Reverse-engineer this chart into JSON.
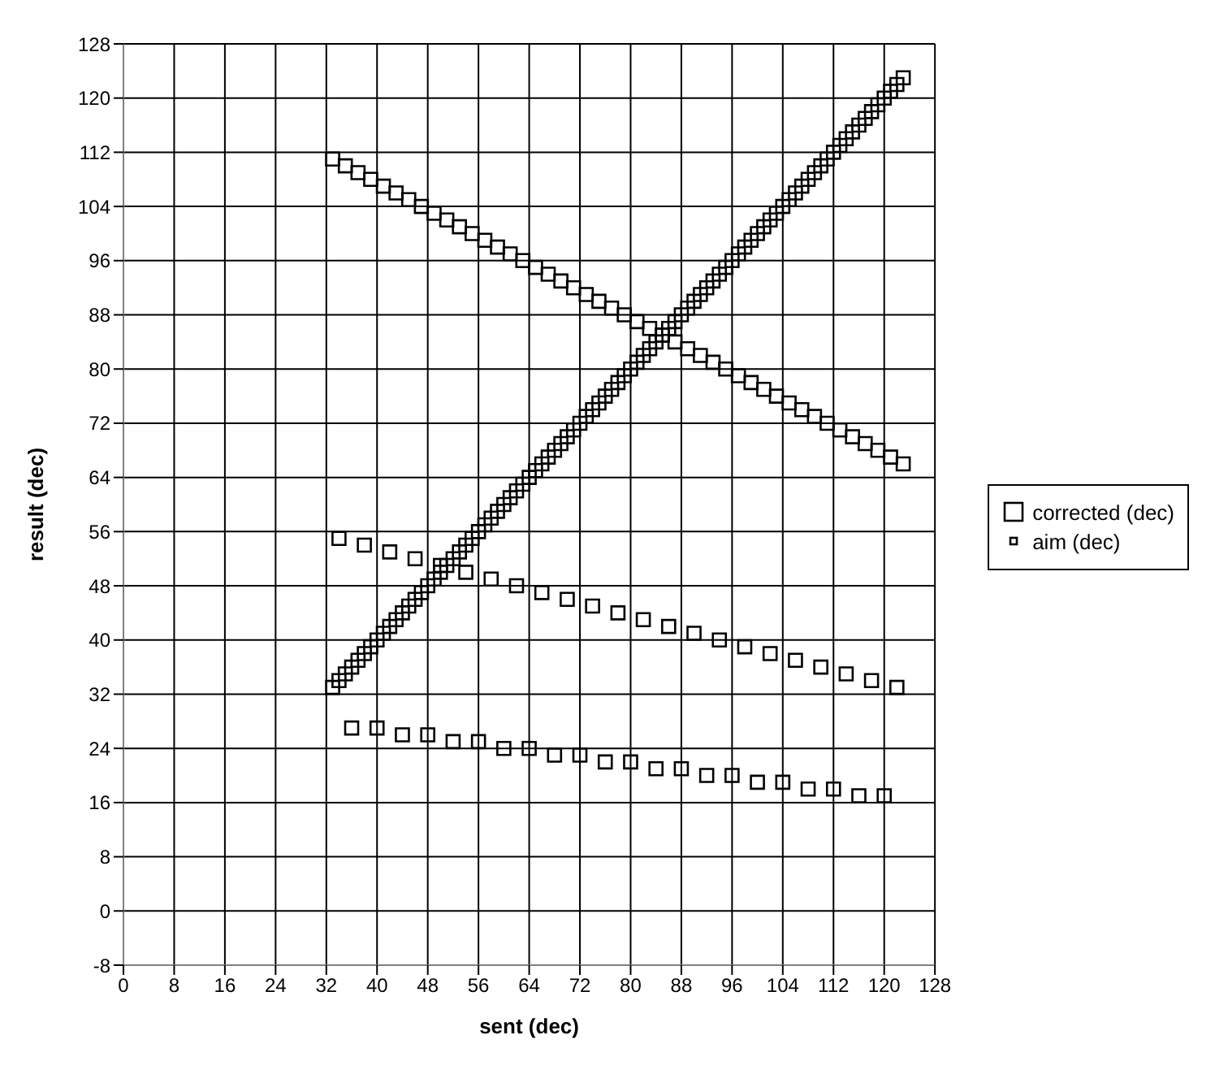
{
  "chart_data": {
    "type": "scatter",
    "xlabel": "sent (dec)",
    "ylabel": "result (dec)",
    "xlim": [
      0,
      128
    ],
    "xticks": [
      0,
      8,
      16,
      24,
      32,
      40,
      48,
      56,
      64,
      72,
      80,
      88,
      96,
      104,
      112,
      120,
      128
    ],
    "ylim": [
      -8,
      128
    ],
    "yticks": [
      -8,
      0,
      8,
      16,
      24,
      32,
      40,
      48,
      56,
      64,
      72,
      80,
      88,
      96,
      104,
      112,
      120,
      128
    ],
    "grid": true,
    "legend": "right",
    "marker": "square",
    "series": [
      {
        "name": "corrected (dec)",
        "color": "#000000",
        "x": [
          33,
          35,
          37,
          39,
          41,
          43,
          45,
          47,
          49,
          51,
          53,
          55,
          57,
          59,
          61,
          63,
          65,
          67,
          69,
          71,
          73,
          75,
          77,
          79,
          81,
          83,
          85,
          87,
          89,
          91,
          93,
          95,
          97,
          99,
          101,
          103,
          105,
          107,
          109,
          111,
          113,
          115,
          117,
          119,
          121,
          123,
          34,
          38,
          42,
          46,
          50,
          54,
          58,
          62,
          66,
          70,
          74,
          78,
          82,
          86,
          90,
          94,
          98,
          102,
          106,
          110,
          114,
          118,
          122,
          36,
          40,
          44,
          48,
          52,
          56,
          60,
          64,
          68,
          72,
          76,
          80,
          84,
          88,
          92,
          96,
          100,
          104,
          108,
          112,
          116,
          120
        ],
        "values": [
          111,
          110,
          109,
          108,
          107,
          106,
          105,
          104,
          103,
          102,
          101,
          100,
          99,
          98,
          97,
          96,
          95,
          94,
          93,
          92,
          91,
          90,
          89,
          88,
          87,
          86,
          85,
          84,
          83,
          82,
          81,
          80,
          79,
          78,
          77,
          76,
          75,
          74,
          73,
          72,
          71,
          70,
          69,
          68,
          67,
          66,
          55,
          54,
          53,
          52,
          51,
          50,
          49,
          48,
          47,
          46,
          45,
          44,
          43,
          42,
          41,
          40,
          39,
          38,
          37,
          36,
          35,
          34,
          33,
          27,
          27,
          26,
          26,
          25,
          25,
          24,
          24,
          23,
          23,
          22,
          22,
          21,
          21,
          20,
          20,
          19,
          19,
          18,
          18,
          17,
          17
        ]
      },
      {
        "name": "aim (dec)",
        "color": "#000000",
        "x": [
          33,
          34,
          35,
          36,
          37,
          38,
          39,
          40,
          41,
          42,
          43,
          44,
          45,
          46,
          47,
          48,
          49,
          50,
          51,
          52,
          53,
          54,
          55,
          56,
          57,
          58,
          59,
          60,
          61,
          62,
          63,
          64,
          65,
          66,
          67,
          68,
          69,
          70,
          71,
          72,
          73,
          74,
          75,
          76,
          77,
          78,
          79,
          80,
          81,
          82,
          83,
          84,
          85,
          86,
          87,
          88,
          89,
          90,
          91,
          92,
          93,
          94,
          95,
          96,
          97,
          98,
          99,
          100,
          101,
          102,
          103,
          104,
          105,
          106,
          107,
          108,
          109,
          110,
          111,
          112,
          113,
          114,
          115,
          116,
          117,
          118,
          119,
          120,
          121,
          122,
          123
        ],
        "values": [
          33,
          34,
          35,
          36,
          37,
          38,
          39,
          40,
          41,
          42,
          43,
          44,
          45,
          46,
          47,
          48,
          49,
          50,
          51,
          52,
          53,
          54,
          55,
          56,
          57,
          58,
          59,
          60,
          61,
          62,
          63,
          64,
          65,
          66,
          67,
          68,
          69,
          70,
          71,
          72,
          73,
          74,
          75,
          76,
          77,
          78,
          79,
          80,
          81,
          82,
          83,
          84,
          85,
          86,
          87,
          88,
          89,
          90,
          91,
          92,
          93,
          94,
          95,
          96,
          97,
          98,
          99,
          100,
          101,
          102,
          103,
          104,
          105,
          106,
          107,
          108,
          109,
          110,
          111,
          112,
          113,
          114,
          115,
          116,
          117,
          118,
          119,
          120,
          121,
          122,
          123
        ]
      }
    ]
  }
}
